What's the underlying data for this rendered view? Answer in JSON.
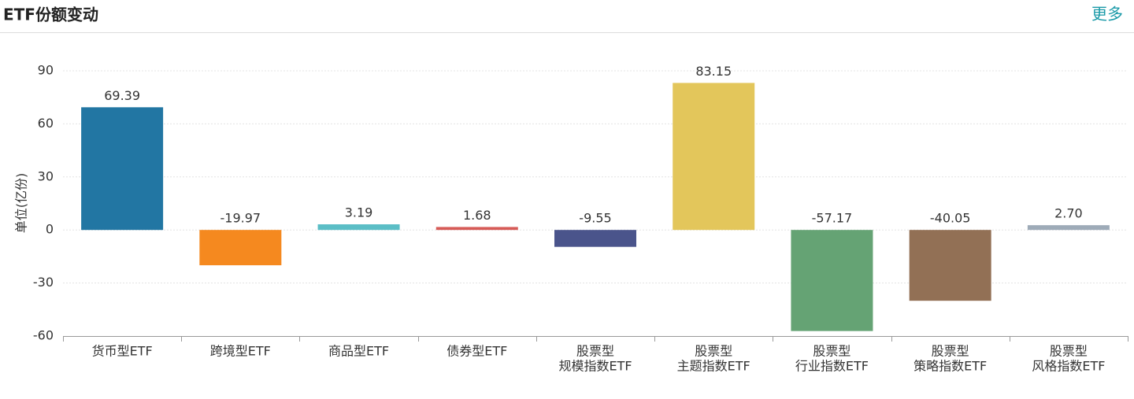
{
  "header": {
    "title": "ETF份额变动",
    "more": "更多"
  },
  "chart_data": {
    "type": "bar",
    "y_label": "单位(亿份)",
    "categories": [
      [
        "货币型ETF"
      ],
      [
        "跨境型ETF"
      ],
      [
        "商品型ETF"
      ],
      [
        "债券型ETF"
      ],
      [
        "股票型",
        "规模指数ETF"
      ],
      [
        "股票型",
        "主题指数ETF"
      ],
      [
        "股票型",
        "行业指数ETF"
      ],
      [
        "股票型",
        "策略指数ETF"
      ],
      [
        "股票型",
        "风格指数ETF"
      ]
    ],
    "values": [
      69.39,
      -19.97,
      3.19,
      1.68,
      -9.55,
      83.15,
      -57.17,
      -40.05,
      2.7
    ],
    "value_labels": [
      "69.39",
      "-19.97",
      "3.19",
      "1.68",
      "-9.55",
      "83.15",
      "-57.17",
      "-40.05",
      "2.70"
    ],
    "colors": [
      "#2276a3",
      "#f5891f",
      "#5bbec6",
      "#d65b57",
      "#4a548b",
      "#e3c65b",
      "#65a374",
      "#927055",
      "#9eabb8"
    ],
    "ylim": [
      -60,
      90
    ],
    "yticks": [
      -60,
      -30,
      0,
      30,
      60,
      90
    ],
    "grid": true
  }
}
